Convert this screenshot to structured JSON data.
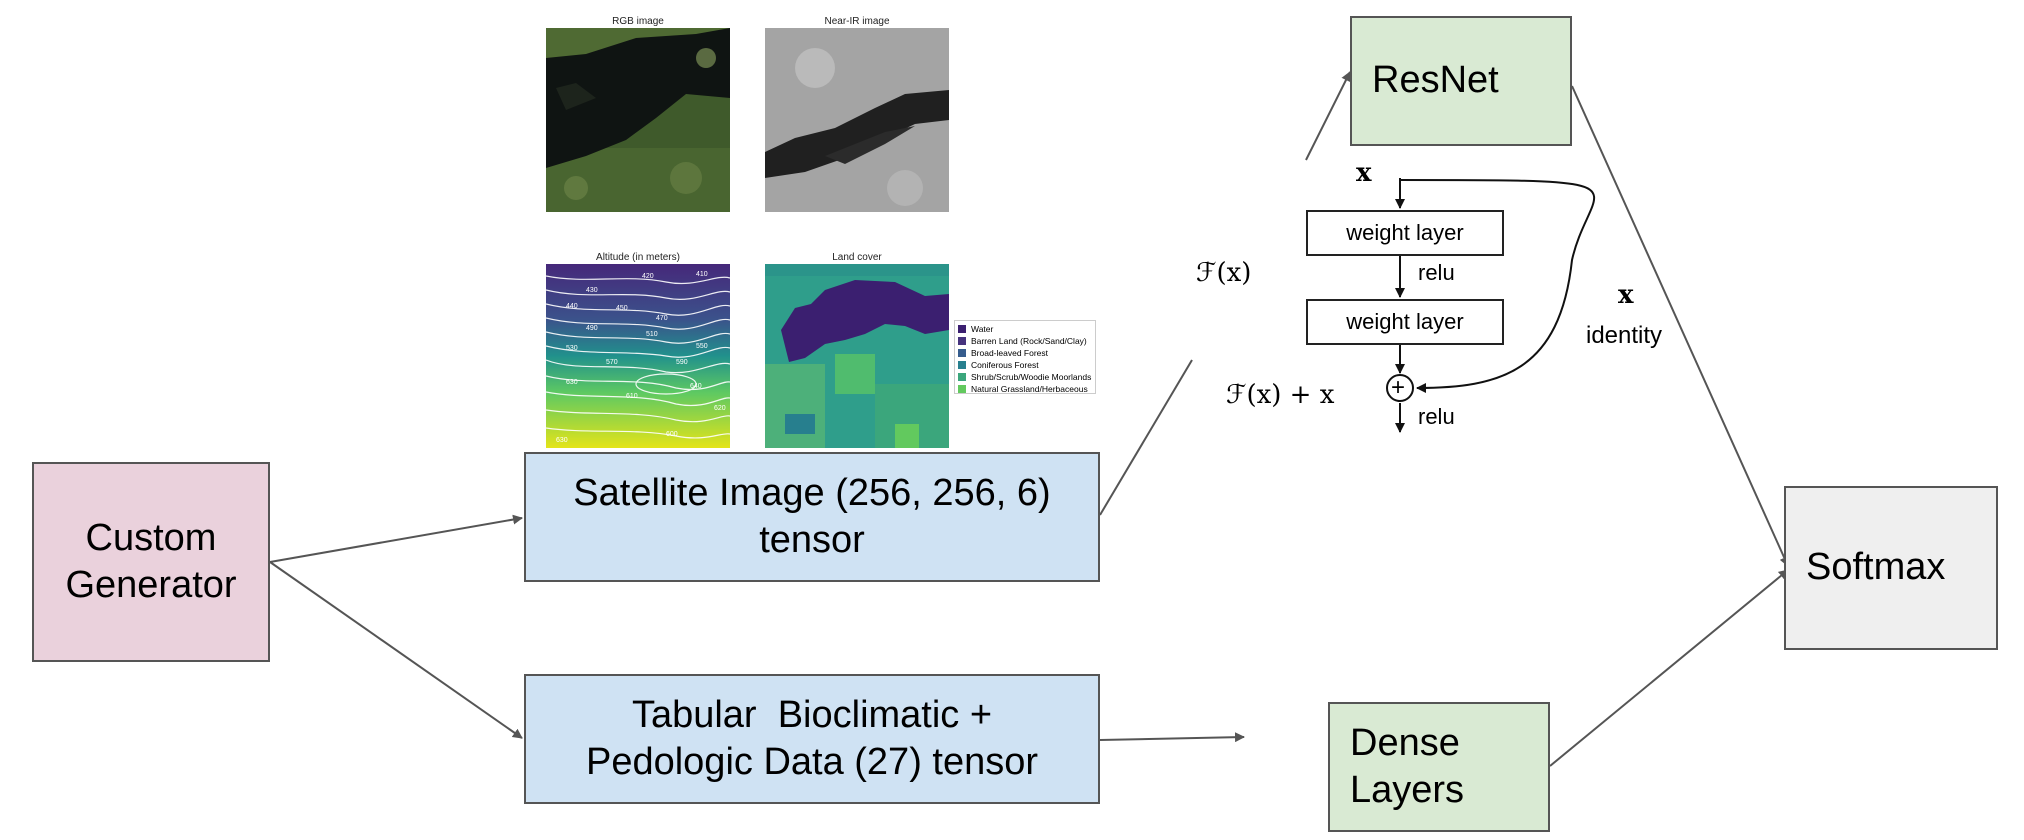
{
  "nodes": {
    "custom_generator": {
      "label_line1": "Custom",
      "label_line2": "Generator",
      "color": "#ead1dc"
    },
    "satellite_tensor": {
      "label_line1": "Satellite Image (256, 256, 6)",
      "label_line2": "tensor",
      "color": "#cfe2f3"
    },
    "tabular_tensor": {
      "label_line1": "Tabular  Bioclimatic +",
      "label_line2": "Pedologic Data (27) tensor",
      "color": "#cfe2f3"
    },
    "resnet": {
      "label": "ResNet",
      "color": "#d9ead3"
    },
    "dense_layers": {
      "label_line1": "Dense",
      "label_line2": "Layers",
      "color": "#d9ead3"
    },
    "softmax": {
      "label": "Softmax",
      "color": "#efefef"
    }
  },
  "thumbnails": {
    "rgb": {
      "title": "RGB image"
    },
    "near_ir": {
      "title": "Near-IR image"
    },
    "altitude": {
      "title": "Altitude (in meters)",
      "contour_labels": [
        "420",
        "430",
        "410",
        "440",
        "450",
        "470",
        "490",
        "510",
        "530",
        "550",
        "570",
        "590",
        "630",
        "610",
        "640",
        "620",
        "600",
        "630"
      ]
    },
    "land_cover": {
      "title": "Land cover",
      "legend": [
        {
          "label": "Water",
          "color": "#3b1f70"
        },
        {
          "label": "Barren Land (Rock/Sand/Clay)",
          "color": "#46337e"
        },
        {
          "label": "Broad-leaved Forest",
          "color": "#365c8d"
        },
        {
          "label": "Coniferous Forest",
          "color": "#277f8e"
        },
        {
          "label": "Shrub/Scrub/Woodie Moorlands",
          "color": "#3ba67c"
        },
        {
          "label": "Natural Grassland/Herbaceous",
          "color": "#62c95e"
        }
      ]
    }
  },
  "residual_block": {
    "input": "x",
    "layer1": "weight layer",
    "relu1": "relu",
    "layer2": "weight layer",
    "fx": "ℱ(x)",
    "fx_plus_x": "ℱ(x) + x",
    "relu2": "relu",
    "shortcut_symbol": "x",
    "shortcut_label": "identity",
    "plus_symbol": "+"
  }
}
